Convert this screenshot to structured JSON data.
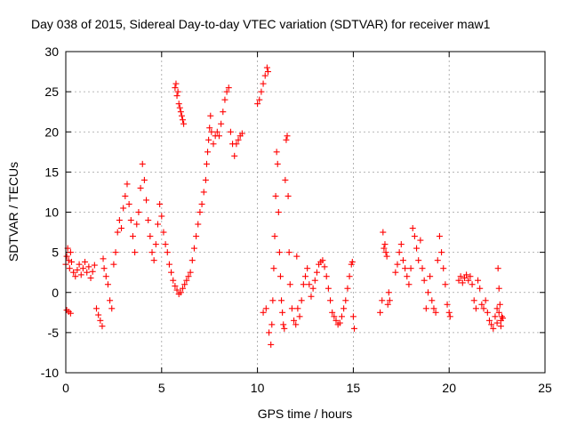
{
  "chart_data": {
    "type": "scatter",
    "title": "Day 038 of 2015, Sidereal Day-to-day VTEC variation (SDTVAR) for receiver maw1",
    "xlabel": "GPS time / hours",
    "ylabel": "SDTVAR / TECUs",
    "xlim": [
      0,
      25
    ],
    "ylim": [
      -10,
      30
    ],
    "xticks": [
      0,
      5,
      10,
      15,
      20,
      25
    ],
    "xtick_labels": [
      "0",
      "5",
      "10",
      "15",
      "20",
      "25"
    ],
    "yticks": [
      -10,
      -5,
      0,
      5,
      10,
      15,
      20,
      25,
      30
    ],
    "ytick_labels": [
      "-10",
      "-5",
      "0",
      "5",
      "10",
      "15",
      "20",
      "25",
      "30"
    ],
    "grid": true,
    "marker": "+",
    "color": "#ff0000",
    "series": [
      {
        "name": "SDTVAR",
        "points": [
          [
            0.0,
            3.5
          ],
          [
            0.05,
            4.5
          ],
          [
            0.1,
            5.5
          ],
          [
            0.15,
            4.0
          ],
          [
            0.2,
            3.0
          ],
          [
            0.25,
            5.0
          ],
          [
            0.3,
            3.8
          ],
          [
            0.05,
            -2.2
          ],
          [
            0.15,
            -2.4
          ],
          [
            0.25,
            -2.6
          ],
          [
            0.4,
            2.5
          ],
          [
            0.5,
            2.0
          ],
          [
            0.6,
            2.8
          ],
          [
            0.7,
            3.5
          ],
          [
            0.8,
            2.2
          ],
          [
            0.9,
            3.0
          ],
          [
            1.0,
            3.8
          ],
          [
            1.1,
            2.5
          ],
          [
            1.2,
            3.2
          ],
          [
            1.3,
            1.8
          ],
          [
            1.4,
            2.6
          ],
          [
            1.5,
            3.4
          ],
          [
            1.6,
            -2.0
          ],
          [
            1.7,
            -2.8
          ],
          [
            1.8,
            -3.5
          ],
          [
            1.9,
            -4.2
          ],
          [
            1.95,
            4.2
          ],
          [
            2.0,
            3.0
          ],
          [
            2.1,
            2.0
          ],
          [
            2.2,
            1.0
          ],
          [
            2.3,
            -1.0
          ],
          [
            2.4,
            -2.0
          ],
          [
            2.5,
            3.5
          ],
          [
            2.6,
            5.0
          ],
          [
            2.7,
            7.5
          ],
          [
            2.8,
            9.0
          ],
          [
            2.9,
            8.0
          ],
          [
            3.0,
            10.5
          ],
          [
            3.1,
            12.0
          ],
          [
            3.2,
            13.5
          ],
          [
            3.3,
            11.0
          ],
          [
            3.4,
            9.0
          ],
          [
            3.5,
            7.0
          ],
          [
            3.6,
            5.0
          ],
          [
            3.7,
            8.5
          ],
          [
            3.8,
            10.0
          ],
          [
            3.9,
            13.0
          ],
          [
            4.0,
            16.0
          ],
          [
            4.1,
            14.0
          ],
          [
            4.2,
            11.5
          ],
          [
            4.3,
            9.0
          ],
          [
            4.4,
            7.0
          ],
          [
            4.5,
            5.0
          ],
          [
            4.6,
            4.0
          ],
          [
            4.7,
            6.0
          ],
          [
            4.8,
            8.5
          ],
          [
            4.9,
            11.0
          ],
          [
            5.0,
            9.5
          ],
          [
            5.1,
            7.5
          ],
          [
            5.2,
            6.0
          ],
          [
            5.3,
            5.0
          ],
          [
            5.4,
            3.5
          ],
          [
            5.5,
            2.5
          ],
          [
            5.6,
            1.5
          ],
          [
            5.7,
            0.8
          ],
          [
            5.8,
            0.3
          ],
          [
            5.9,
            -0.2
          ],
          [
            6.0,
            0.0
          ],
          [
            6.1,
            0.5
          ],
          [
            6.2,
            1.0
          ],
          [
            5.7,
            25.5
          ],
          [
            5.75,
            26.0
          ],
          [
            5.8,
            24.5
          ],
          [
            5.85,
            25.0
          ],
          [
            5.9,
            23.5
          ],
          [
            5.95,
            23.0
          ],
          [
            6.0,
            22.5
          ],
          [
            6.05,
            22.0
          ],
          [
            6.1,
            21.5
          ],
          [
            6.15,
            21.0
          ],
          [
            6.3,
            1.5
          ],
          [
            6.4,
            2.0
          ],
          [
            6.5,
            2.5
          ],
          [
            6.6,
            4.0
          ],
          [
            6.7,
            5.5
          ],
          [
            6.8,
            7.0
          ],
          [
            6.9,
            8.5
          ],
          [
            7.0,
            10.0
          ],
          [
            7.1,
            11.0
          ],
          [
            7.2,
            12.5
          ],
          [
            7.3,
            14.0
          ],
          [
            7.35,
            16.0
          ],
          [
            7.4,
            17.5
          ],
          [
            7.45,
            19.0
          ],
          [
            7.5,
            20.5
          ],
          [
            7.55,
            22.0
          ],
          [
            7.6,
            20.0
          ],
          [
            7.7,
            18.5
          ],
          [
            7.8,
            19.5
          ],
          [
            7.9,
            20.0
          ],
          [
            8.0,
            19.5
          ],
          [
            8.1,
            21.0
          ],
          [
            8.2,
            22.5
          ],
          [
            8.3,
            24.0
          ],
          [
            8.4,
            25.0
          ],
          [
            8.5,
            25.5
          ],
          [
            8.6,
            20.0
          ],
          [
            8.7,
            18.5
          ],
          [
            8.8,
            17.0
          ],
          [
            8.9,
            18.5
          ],
          [
            9.0,
            19.0
          ],
          [
            9.1,
            19.5
          ],
          [
            9.2,
            19.8
          ],
          [
            10.0,
            23.5
          ],
          [
            10.1,
            24.0
          ],
          [
            10.2,
            25.0
          ],
          [
            10.3,
            26.0
          ],
          [
            10.4,
            27.0
          ],
          [
            10.5,
            28.0
          ],
          [
            10.55,
            27.5
          ],
          [
            10.3,
            -2.5
          ],
          [
            10.45,
            -2.0
          ],
          [
            10.6,
            -5.0
          ],
          [
            10.7,
            -6.5
          ],
          [
            10.75,
            -4.0
          ],
          [
            10.8,
            -1.0
          ],
          [
            10.85,
            3.0
          ],
          [
            10.9,
            7.0
          ],
          [
            10.95,
            12.0
          ],
          [
            11.0,
            17.5
          ],
          [
            11.05,
            16.0
          ],
          [
            11.1,
            10.0
          ],
          [
            11.15,
            5.0
          ],
          [
            11.2,
            2.0
          ],
          [
            11.25,
            -1.0
          ],
          [
            11.3,
            -2.5
          ],
          [
            11.35,
            -4.0
          ],
          [
            11.4,
            -4.5
          ],
          [
            11.45,
            14.0
          ],
          [
            11.5,
            19.0
          ],
          [
            11.55,
            19.5
          ],
          [
            11.6,
            12.0
          ],
          [
            11.65,
            5.0
          ],
          [
            11.7,
            1.0
          ],
          [
            11.8,
            -2.0
          ],
          [
            11.9,
            -3.5
          ],
          [
            12.0,
            -4.0
          ],
          [
            12.05,
            4.5
          ],
          [
            12.1,
            -2.0
          ],
          [
            12.2,
            -3.0
          ],
          [
            12.3,
            -1.0
          ],
          [
            12.4,
            1.0
          ],
          [
            12.5,
            2.0
          ],
          [
            12.6,
            3.0
          ],
          [
            12.7,
            1.0
          ],
          [
            12.8,
            -0.5
          ],
          [
            12.9,
            0.5
          ],
          [
            13.0,
            1.5
          ],
          [
            13.1,
            2.5
          ],
          [
            13.2,
            3.5
          ],
          [
            13.3,
            3.8
          ],
          [
            13.4,
            4.0
          ],
          [
            13.5,
            3.2
          ],
          [
            13.6,
            2.0
          ],
          [
            13.7,
            0.5
          ],
          [
            13.8,
            -1.0
          ],
          [
            13.9,
            -2.5
          ],
          [
            14.0,
            -3.0
          ],
          [
            14.1,
            -3.5
          ],
          [
            14.2,
            -4.0
          ],
          [
            14.3,
            -3.8
          ],
          [
            14.4,
            -3.0
          ],
          [
            14.5,
            -2.0
          ],
          [
            14.6,
            -1.0
          ],
          [
            14.7,
            0.5
          ],
          [
            14.8,
            2.0
          ],
          [
            14.9,
            3.5
          ],
          [
            15.0,
            -3.0
          ],
          [
            15.05,
            -4.5
          ],
          [
            14.95,
            3.8
          ],
          [
            16.4,
            -2.5
          ],
          [
            16.5,
            -1.0
          ],
          [
            16.55,
            7.5
          ],
          [
            16.6,
            5.5
          ],
          [
            16.65,
            6.0
          ],
          [
            16.7,
            5.0
          ],
          [
            16.75,
            4.5
          ],
          [
            16.8,
            -1.5
          ],
          [
            16.85,
            0.0
          ],
          [
            16.9,
            -1.0
          ],
          [
            17.2,
            2.5
          ],
          [
            17.3,
            3.5
          ],
          [
            17.4,
            5.0
          ],
          [
            17.5,
            6.0
          ],
          [
            17.6,
            4.0
          ],
          [
            17.7,
            3.0
          ],
          [
            17.8,
            2.0
          ],
          [
            17.9,
            1.0
          ],
          [
            18.0,
            3.0
          ],
          [
            18.1,
            8.0
          ],
          [
            18.2,
            7.0
          ],
          [
            18.3,
            5.5
          ],
          [
            18.4,
            4.0
          ],
          [
            18.5,
            6.5
          ],
          [
            18.6,
            3.0
          ],
          [
            18.7,
            1.5
          ],
          [
            18.8,
            -2.0
          ],
          [
            18.9,
            0.0
          ],
          [
            19.0,
            2.0
          ],
          [
            19.1,
            -1.0
          ],
          [
            19.2,
            -2.0
          ],
          [
            19.3,
            -2.5
          ],
          [
            19.4,
            4.0
          ],
          [
            19.5,
            7.0
          ],
          [
            19.6,
            5.0
          ],
          [
            19.7,
            3.0
          ],
          [
            19.8,
            1.0
          ],
          [
            19.9,
            -1.5
          ],
          [
            20.0,
            -2.5
          ],
          [
            20.05,
            -3.0
          ],
          [
            20.5,
            1.5
          ],
          [
            20.6,
            2.0
          ],
          [
            20.7,
            1.2
          ],
          [
            20.8,
            1.8
          ],
          [
            20.9,
            2.2
          ],
          [
            21.0,
            1.5
          ],
          [
            21.1,
            2.0
          ],
          [
            21.2,
            1.0
          ],
          [
            21.3,
            -1.0
          ],
          [
            21.4,
            -2.0
          ],
          [
            21.5,
            1.5
          ],
          [
            21.6,
            0.5
          ],
          [
            21.7,
            -1.5
          ],
          [
            21.8,
            -2.0
          ],
          [
            21.9,
            -1.0
          ],
          [
            22.0,
            -2.5
          ],
          [
            22.1,
            -3.5
          ],
          [
            22.2,
            -4.0
          ],
          [
            22.3,
            -4.5
          ],
          [
            22.4,
            -3.0
          ],
          [
            22.5,
            -2.0
          ],
          [
            22.55,
            3.0
          ],
          [
            22.6,
            0.5
          ],
          [
            22.65,
            -1.5
          ],
          [
            22.7,
            -3.5
          ],
          [
            22.75,
            -3.0
          ],
          [
            22.8,
            -3.2
          ],
          [
            22.7,
            -4.2
          ],
          [
            22.6,
            -2.5
          ],
          [
            22.5,
            -3.8
          ]
        ]
      }
    ]
  }
}
